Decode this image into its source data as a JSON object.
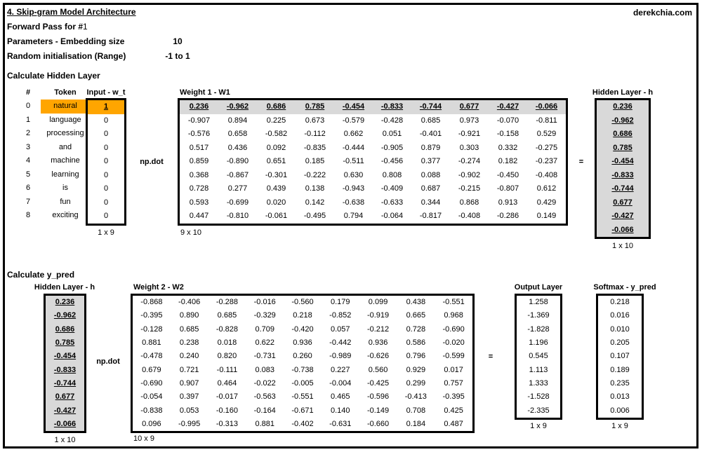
{
  "page": {
    "title": "4. Skip-gram Model Architecture",
    "watermark": "derekchia.com",
    "subtitle_bold": "Forward Pass for #",
    "subtitle_num": "1",
    "param1_label": "Parameters - Embedding size",
    "param1_value": "10",
    "param2_label": "Random initialisation (Range)",
    "param2_value": "-1 to 1"
  },
  "colors": {
    "highlight": "#ffa500",
    "shaded": "#d9d9d9"
  },
  "hidden_section": {
    "heading": "Calculate Hidden Layer",
    "idx_header": "#",
    "token_header": "Token",
    "input_header": "Input - w_t",
    "rows": [
      {
        "idx": "0",
        "token": "natural",
        "input": "1",
        "highlight": true
      },
      {
        "idx": "1",
        "token": "language",
        "input": "0"
      },
      {
        "idx": "2",
        "token": "processing",
        "input": "0"
      },
      {
        "idx": "3",
        "token": "and",
        "input": "0"
      },
      {
        "idx": "4",
        "token": "machine",
        "input": "0"
      },
      {
        "idx": "5",
        "token": "learning",
        "input": "0"
      },
      {
        "idx": "6",
        "token": "is",
        "input": "0"
      },
      {
        "idx": "7",
        "token": "fun",
        "input": "0"
      },
      {
        "idx": "8",
        "token": "exciting",
        "input": "0"
      }
    ],
    "input_dim": "1 x 9",
    "np_dot": "np.dot",
    "w1_heading": "Weight 1 - W1",
    "w1": [
      [
        "0.236",
        "-0.962",
        "0.686",
        "0.785",
        "-0.454",
        "-0.833",
        "-0.744",
        "0.677",
        "-0.427",
        "-0.066"
      ],
      [
        "-0.907",
        "0.894",
        "0.225",
        "0.673",
        "-0.579",
        "-0.428",
        "0.685",
        "0.973",
        "-0.070",
        "-0.811"
      ],
      [
        "-0.576",
        "0.658",
        "-0.582",
        "-0.112",
        "0.662",
        "0.051",
        "-0.401",
        "-0.921",
        "-0.158",
        "0.529"
      ],
      [
        "0.517",
        "0.436",
        "0.092",
        "-0.835",
        "-0.444",
        "-0.905",
        "0.879",
        "0.303",
        "0.332",
        "-0.275"
      ],
      [
        "0.859",
        "-0.890",
        "0.651",
        "0.185",
        "-0.511",
        "-0.456",
        "0.377",
        "-0.274",
        "0.182",
        "-0.237"
      ],
      [
        "0.368",
        "-0.867",
        "-0.301",
        "-0.222",
        "0.630",
        "0.808",
        "0.088",
        "-0.902",
        "-0.450",
        "-0.408"
      ],
      [
        "0.728",
        "0.277",
        "0.439",
        "0.138",
        "-0.943",
        "-0.409",
        "0.687",
        "-0.215",
        "-0.807",
        "0.612"
      ],
      [
        "0.593",
        "-0.699",
        "0.020",
        "0.142",
        "-0.638",
        "-0.633",
        "0.344",
        "0.868",
        "0.913",
        "0.429"
      ],
      [
        "0.447",
        "-0.810",
        "-0.061",
        "-0.495",
        "0.794",
        "-0.064",
        "-0.817",
        "-0.408",
        "-0.286",
        "0.149"
      ]
    ],
    "w1_dim": "9 x 10",
    "equals": "=",
    "h_heading": "Hidden Layer - h",
    "h": [
      "0.236",
      "-0.962",
      "0.686",
      "0.785",
      "-0.454",
      "-0.833",
      "-0.744",
      "0.677",
      "-0.427",
      "-0.066"
    ],
    "h_dim": "1 x 10"
  },
  "ypred_section": {
    "heading": "Calculate y_pred",
    "h_heading": "Hidden Layer - h",
    "h": [
      "0.236",
      "-0.962",
      "0.686",
      "0.785",
      "-0.454",
      "-0.833",
      "-0.744",
      "0.677",
      "-0.427",
      "-0.066"
    ],
    "h_dim": "1 x 10",
    "np_dot": "np.dot",
    "w2_heading": "Weight 2 - W2",
    "w2": [
      [
        "-0.868",
        "-0.406",
        "-0.288",
        "-0.016",
        "-0.560",
        "0.179",
        "0.099",
        "0.438",
        "-0.551"
      ],
      [
        "-0.395",
        "0.890",
        "0.685",
        "-0.329",
        "0.218",
        "-0.852",
        "-0.919",
        "0.665",
        "0.968"
      ],
      [
        "-0.128",
        "0.685",
        "-0.828",
        "0.709",
        "-0.420",
        "0.057",
        "-0.212",
        "0.728",
        "-0.690"
      ],
      [
        "0.881",
        "0.238",
        "0.018",
        "0.622",
        "0.936",
        "-0.442",
        "0.936",
        "0.586",
        "-0.020"
      ],
      [
        "-0.478",
        "0.240",
        "0.820",
        "-0.731",
        "0.260",
        "-0.989",
        "-0.626",
        "0.796",
        "-0.599"
      ],
      [
        "0.679",
        "0.721",
        "-0.111",
        "0.083",
        "-0.738",
        "0.227",
        "0.560",
        "0.929",
        "0.017"
      ],
      [
        "-0.690",
        "0.907",
        "0.464",
        "-0.022",
        "-0.005",
        "-0.004",
        "-0.425",
        "0.299",
        "0.757"
      ],
      [
        "-0.054",
        "0.397",
        "-0.017",
        "-0.563",
        "-0.551",
        "0.465",
        "-0.596",
        "-0.413",
        "-0.395"
      ],
      [
        "-0.838",
        "0.053",
        "-0.160",
        "-0.164",
        "-0.671",
        "0.140",
        "-0.149",
        "0.708",
        "0.425"
      ],
      [
        "0.096",
        "-0.995",
        "-0.313",
        "0.881",
        "-0.402",
        "-0.631",
        "-0.660",
        "0.184",
        "0.487"
      ]
    ],
    "w2_dim": "10 x 9",
    "equals": "=",
    "output_heading": "Output Layer",
    "output": [
      "1.258",
      "-1.369",
      "-1.828",
      "1.196",
      "0.545",
      "1.113",
      "1.333",
      "-1.528",
      "-2.335"
    ],
    "output_dim": "1 x 9",
    "softmax_heading": "Softmax - y_pred",
    "softmax": [
      "0.218",
      "0.016",
      "0.010",
      "0.205",
      "0.107",
      "0.189",
      "0.235",
      "0.013",
      "0.006"
    ],
    "softmax_dim": "1 x 9"
  }
}
